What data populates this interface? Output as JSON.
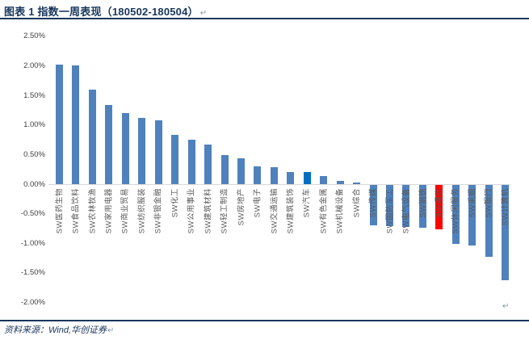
{
  "header": {
    "title": "图表 1 指数一周表现（180502-180504）",
    "pilcrow": "↵"
  },
  "footer": {
    "source": "资料来源：Wind,华创证券",
    "pilcrow": "↵"
  },
  "chart_pilcrow": "↵",
  "colors": {
    "title_navy": "#17365d",
    "bar_default": "#4f81bd",
    "bar_highlight_auto": "#0070c0",
    "bar_highlight_comm": "#ff0000",
    "axis_line": "#d9d9d9",
    "tick_text": "#404040",
    "category_text": "#595959"
  },
  "chart_data": {
    "type": "bar",
    "title": "指数一周表现（180502-180504）",
    "xlabel": "",
    "ylabel": "",
    "ylim": [
      -2.0,
      2.5
    ],
    "ytick_step": 0.5,
    "grid": false,
    "legend": false,
    "ytick_labels": [
      "2.50%",
      "2.00%",
      "1.50%",
      "1.00%",
      "0.50%",
      "0.00%",
      "-0.50%",
      "-1.00%",
      "-1.50%",
      "-2.00%"
    ],
    "ytick_values": [
      2.5,
      2.0,
      1.5,
      1.0,
      0.5,
      0.0,
      -0.5,
      -1.0,
      -1.5,
      -2.0
    ],
    "categories": [
      "SW医药生物",
      "SW食品饮料",
      "SW农林牧渔",
      "SW家用电器",
      "SW商业贸易",
      "SW纺织服装",
      "SW非银金融",
      "SW化工",
      "SW公用事业",
      "SW建筑材料",
      "SW轻工制造",
      "SW房地产",
      "SW电子",
      "SW交通运输",
      "SW建筑装饰",
      "SW汽车",
      "SW有色金属",
      "SW机械设备",
      "SW综合",
      "SW传媒",
      "SW国防军工",
      "SW电气设备",
      "SW钢铁",
      "SW通信",
      "SW休闲服务",
      "SW采掘",
      "SW银行",
      "SW计算机"
    ],
    "values": [
      2.02,
      2.01,
      1.59,
      1.33,
      1.2,
      1.12,
      1.08,
      0.83,
      0.75,
      0.67,
      0.49,
      0.44,
      0.3,
      0.28,
      0.21,
      0.2,
      0.13,
      0.05,
      0.03,
      -0.68,
      -0.69,
      -0.71,
      -0.72,
      -0.75,
      -1.0,
      -1.02,
      -1.21,
      -1.61
    ],
    "bar_colors": [
      "#4f81bd",
      "#4f81bd",
      "#4f81bd",
      "#4f81bd",
      "#4f81bd",
      "#4f81bd",
      "#4f81bd",
      "#4f81bd",
      "#4f81bd",
      "#4f81bd",
      "#4f81bd",
      "#4f81bd",
      "#4f81bd",
      "#4f81bd",
      "#4f81bd",
      "#0070c0",
      "#4f81bd",
      "#4f81bd",
      "#4f81bd",
      "#4f81bd",
      "#4f81bd",
      "#4f81bd",
      "#4f81bd",
      "#ff0000",
      "#4f81bd",
      "#4f81bd",
      "#4f81bd",
      "#4f81bd"
    ],
    "highlighted": [
      {
        "category": "SW汽车",
        "color": "#0070c0"
      },
      {
        "category": "SW通信",
        "color": "#ff0000"
      }
    ]
  }
}
